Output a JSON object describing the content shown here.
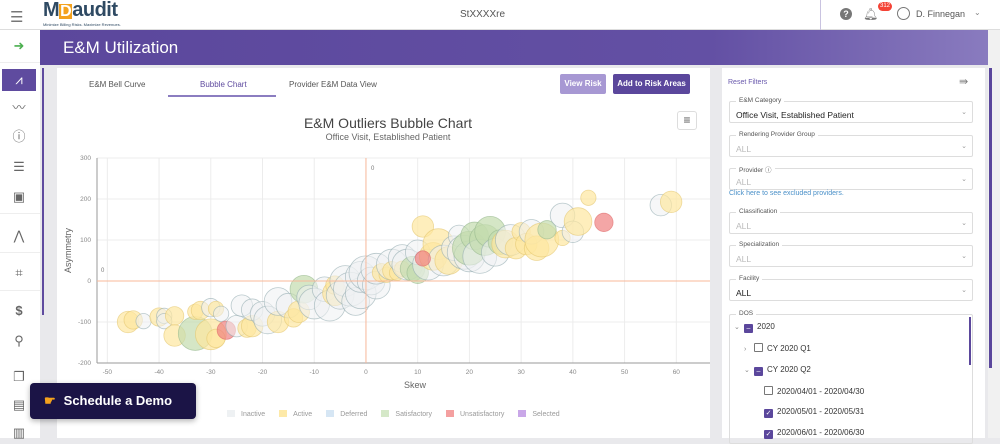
{
  "topbar": {
    "logo_text": "MDaudit",
    "logo_tagline": "Minimize Billing Risks. Maximize Revenues.",
    "center_title": "StXXXXre",
    "notifications_count": "312",
    "user_name": "D. Finnegan"
  },
  "sidebar": {
    "items": [
      "menu-icon",
      "logout-icon",
      "bell-curve-icon",
      "trend-icon",
      "alert-icon",
      "bar-list-icon",
      "calendar-user-icon",
      "activity-icon",
      "binoculars-icon",
      "dollar-icon",
      "search-dollar-icon",
      "document-icon",
      "file-text-icon",
      "file-chart-icon"
    ],
    "active": "bell-curve-icon"
  },
  "header": {
    "title": "E&M Utilization"
  },
  "tabs": [
    {
      "label": "E&M Bell Curve"
    },
    {
      "label": "Bubble Chart",
      "active": true
    },
    {
      "label": "Provider E&M Data View"
    }
  ],
  "buttons": {
    "view_risk": "View Risk",
    "add_risk": "Add to Risk Areas"
  },
  "schedule_demo": "Schedule a Demo",
  "colors": {
    "brand": "#5b479c",
    "inactive": "#eef1f3",
    "active": "#fde9a8",
    "deferred": "#d6e6f4",
    "satisfactory": "#c9dfb4",
    "unsatisfactory": "#f4a0a0",
    "selected": "#c9a7e8"
  },
  "chart_data": {
    "type": "scatter",
    "title": "E&M Outliers Bubble Chart",
    "subtitle": "Office Visit, Established Patient",
    "xlabel": "Skew",
    "ylabel": "Asymmetry",
    "xlim": [
      -52,
      64
    ],
    "ylim": [
      -200,
      300
    ],
    "xticks": [
      -50,
      -40,
      -30,
      -20,
      -10,
      0,
      10,
      20,
      30,
      40,
      50,
      60
    ],
    "yticks": [
      -200,
      -100,
      0,
      100,
      200,
      300
    ],
    "reference_lines": {
      "x": 0,
      "y": 0,
      "x_label": "0",
      "y_label": "0"
    },
    "grid": true,
    "legend": {
      "position": "bottom",
      "entries": [
        "Inactive",
        "Active",
        "Deferred",
        "Satisfactory",
        "Unsatisfactory",
        "Selected"
      ]
    },
    "points": [
      {
        "x": -46,
        "y": -100,
        "z": 5,
        "s": "Active"
      },
      {
        "x": -45,
        "y": -95,
        "z": 4,
        "s": "Active"
      },
      {
        "x": -43,
        "y": -98,
        "z": 3,
        "s": "Inactive"
      },
      {
        "x": -40,
        "y": -88,
        "z": 4,
        "s": "Active"
      },
      {
        "x": -39,
        "y": -85,
        "z": 3,
        "s": "Inactive"
      },
      {
        "x": -39,
        "y": -98,
        "z": 3,
        "s": "Inactive"
      },
      {
        "x": -37,
        "y": -85,
        "z": 4,
        "s": "Active"
      },
      {
        "x": -37,
        "y": -133,
        "z": 5,
        "s": "Active"
      },
      {
        "x": -33,
        "y": -128,
        "z": 9,
        "s": "Satisfactory"
      },
      {
        "x": -33,
        "y": -75,
        "z": 3,
        "s": "Active"
      },
      {
        "x": -32,
        "y": -72,
        "z": 4,
        "s": "Active"
      },
      {
        "x": -30,
        "y": -65,
        "z": 4,
        "s": "Inactive"
      },
      {
        "x": -30,
        "y": -130,
        "z": 8,
        "s": "Active"
      },
      {
        "x": -29,
        "y": -68,
        "z": 3,
        "s": "Active"
      },
      {
        "x": -29,
        "y": -140,
        "z": 4,
        "s": "Active"
      },
      {
        "x": -28,
        "y": -80,
        "z": 3,
        "s": "Inactive"
      },
      {
        "x": -27,
        "y": -120,
        "z": 4,
        "s": "Unsatisfactory"
      },
      {
        "x": -25,
        "y": -110,
        "z": 5,
        "s": "Inactive"
      },
      {
        "x": -24,
        "y": -60,
        "z": 5,
        "s": "Inactive"
      },
      {
        "x": -23,
        "y": -115,
        "z": 4,
        "s": "Active"
      },
      {
        "x": -22,
        "y": -110,
        "z": 5,
        "s": "Active"
      },
      {
        "x": -22,
        "y": -70,
        "z": 5,
        "s": "Inactive"
      },
      {
        "x": -20,
        "y": -80,
        "z": 6,
        "s": "Inactive"
      },
      {
        "x": -19,
        "y": -95,
        "z": 7,
        "s": "Inactive"
      },
      {
        "x": -17,
        "y": -100,
        "z": 5,
        "s": "Active"
      },
      {
        "x": -17,
        "y": -50,
        "z": 7,
        "s": "Inactive"
      },
      {
        "x": -15,
        "y": -60,
        "z": 6,
        "s": "Inactive"
      },
      {
        "x": -14,
        "y": -90,
        "z": 4,
        "s": "Active"
      },
      {
        "x": -13,
        "y": -75,
        "z": 5,
        "s": "Active"
      },
      {
        "x": -12,
        "y": -20,
        "z": 7,
        "s": "Satisfactory"
      },
      {
        "x": -11,
        "y": -40,
        "z": 6,
        "s": "Inactive"
      },
      {
        "x": -10,
        "y": -55,
        "z": 8,
        "s": "Inactive"
      },
      {
        "x": -8,
        "y": -20,
        "z": 6,
        "s": "Inactive"
      },
      {
        "x": -7,
        "y": -60,
        "z": 8,
        "s": "Inactive"
      },
      {
        "x": -6,
        "y": -30,
        "z": 6,
        "s": "Active"
      },
      {
        "x": -6,
        "y": -10,
        "z": 4,
        "s": "Active"
      },
      {
        "x": -5,
        "y": -35,
        "z": 7,
        "s": "Inactive"
      },
      {
        "x": -4,
        "y": 0,
        "z": 8,
        "s": "Inactive"
      },
      {
        "x": -3,
        "y": -20,
        "z": 9,
        "s": "Inactive"
      },
      {
        "x": -2,
        "y": -50,
        "z": 7,
        "s": "Inactive"
      },
      {
        "x": -1,
        "y": -30,
        "z": 8,
        "s": "Inactive"
      },
      {
        "x": -1,
        "y": 10,
        "z": 8,
        "s": "Inactive"
      },
      {
        "x": 0,
        "y": 20,
        "z": 9,
        "s": "Inactive"
      },
      {
        "x": 1,
        "y": 0,
        "z": 7,
        "s": "Inactive"
      },
      {
        "x": 2,
        "y": -10,
        "z": 7,
        "s": "Inactive"
      },
      {
        "x": 2,
        "y": 30,
        "z": 8,
        "s": "Inactive"
      },
      {
        "x": 3,
        "y": 20,
        "z": 4,
        "s": "Active"
      },
      {
        "x": 4,
        "y": 15,
        "z": 3,
        "s": "Active"
      },
      {
        "x": 5,
        "y": 40,
        "z": 8,
        "s": "Inactive"
      },
      {
        "x": 5,
        "y": 25,
        "z": 4,
        "s": "Active"
      },
      {
        "x": 6,
        "y": 20,
        "z": 3,
        "s": "Active"
      },
      {
        "x": 7,
        "y": 55,
        "z": 7,
        "s": "Inactive"
      },
      {
        "x": 7,
        "y": 30,
        "z": 3,
        "s": "Active"
      },
      {
        "x": 8,
        "y": 40,
        "z": 8,
        "s": "Inactive"
      },
      {
        "x": 9,
        "y": 30,
        "z": 6,
        "s": "Satisfactory"
      },
      {
        "x": 10,
        "y": 20,
        "z": 5,
        "s": "Satisfactory"
      },
      {
        "x": 10,
        "y": 70,
        "z": 6,
        "s": "Inactive"
      },
      {
        "x": 11,
        "y": 133,
        "z": 5,
        "s": "Active"
      },
      {
        "x": 12,
        "y": 40,
        "z": 8,
        "s": "Inactive"
      },
      {
        "x": 13,
        "y": 60,
        "z": 7,
        "s": "Active"
      },
      {
        "x": 14,
        "y": 90,
        "z": 8,
        "s": "Active"
      },
      {
        "x": 15,
        "y": 50,
        "z": 8,
        "s": "Inactive"
      },
      {
        "x": 16,
        "y": 50,
        "z": 7,
        "s": "Active"
      },
      {
        "x": 17,
        "y": 80,
        "z": 6,
        "s": "Inactive"
      },
      {
        "x": 18,
        "y": 110,
        "z": 5,
        "s": "Inactive"
      },
      {
        "x": 19,
        "y": 70,
        "z": 9,
        "s": "Inactive"
      },
      {
        "x": 20,
        "y": 60,
        "z": 8,
        "s": "Inactive"
      },
      {
        "x": 20,
        "y": 80,
        "z": 9,
        "s": "Satisfactory"
      },
      {
        "x": 21,
        "y": 110,
        "z": 7,
        "s": "Satisfactory"
      },
      {
        "x": 22,
        "y": 60,
        "z": 9,
        "s": "Inactive"
      },
      {
        "x": 23,
        "y": 100,
        "z": 8,
        "s": "Satisfactory"
      },
      {
        "x": 24,
        "y": 120,
        "z": 8,
        "s": "Satisfactory"
      },
      {
        "x": 25,
        "y": 70,
        "z": 7,
        "s": "Inactive"
      },
      {
        "x": 26,
        "y": 95,
        "z": 6,
        "s": "Satisfactory"
      },
      {
        "x": 27,
        "y": 90,
        "z": 7,
        "s": "Active"
      },
      {
        "x": 28,
        "y": 100,
        "z": 8,
        "s": "Inactive"
      },
      {
        "x": 29,
        "y": 80,
        "z": 5,
        "s": "Active"
      },
      {
        "x": 30,
        "y": 120,
        "z": 4,
        "s": "Active"
      },
      {
        "x": 31,
        "y": 90,
        "z": 5,
        "s": "Active"
      },
      {
        "x": 32,
        "y": 120,
        "z": 6,
        "s": "Inactive"
      },
      {
        "x": 33,
        "y": 80,
        "z": 6,
        "s": "Active"
      },
      {
        "x": 34,
        "y": 100,
        "z": 9,
        "s": "Active"
      },
      {
        "x": 35,
        "y": 125,
        "z": 4,
        "s": "Satisfactory"
      },
      {
        "x": 38,
        "y": 105,
        "z": 3,
        "s": "Active"
      },
      {
        "x": 38,
        "y": 160,
        "z": 6,
        "s": "Inactive"
      },
      {
        "x": 40,
        "y": 120,
        "z": 5,
        "s": "Inactive"
      },
      {
        "x": 41,
        "y": 145,
        "z": 7,
        "s": "Active"
      },
      {
        "x": 43,
        "y": 203,
        "z": 3,
        "s": "Active"
      },
      {
        "x": 46,
        "y": 143,
        "z": 4,
        "s": "Unsatisfactory"
      },
      {
        "x": 57,
        "y": 185,
        "z": 5,
        "s": "Inactive"
      },
      {
        "x": 59,
        "y": 193,
        "z": 5,
        "s": "Active"
      },
      {
        "x": 11,
        "y": 55,
        "z": 3,
        "s": "Unsatisfactory"
      }
    ]
  },
  "filters": {
    "reset": "Reset Filters",
    "fields": [
      {
        "label": "E&M Category",
        "value": "Office Visit, Established Patient"
      },
      {
        "label": "Rendering Provider Group",
        "value": "ALL"
      },
      {
        "label": "Provider ⓘ",
        "value": "ALL"
      },
      {
        "label": "Classification",
        "value": "ALL"
      },
      {
        "label": "Specialization",
        "value": "ALL"
      },
      {
        "label": "Facility",
        "value": "ALL"
      }
    ],
    "excluded_link": "Click here to see excluded providers.",
    "dos": {
      "label": "DOS",
      "tree": [
        {
          "label": "2020",
          "state": "indeterminate",
          "expanded": true
        },
        {
          "label": "CY 2020 Q1",
          "state": "unchecked",
          "expanded": false
        },
        {
          "label": "CY 2020 Q2",
          "state": "indeterminate",
          "expanded": true
        },
        {
          "label": "2020/04/01 - 2020/04/30",
          "state": "unchecked"
        },
        {
          "label": "2020/05/01 - 2020/05/31",
          "state": "checked"
        },
        {
          "label": "2020/06/01 - 2020/06/30",
          "state": "checked"
        }
      ]
    }
  }
}
